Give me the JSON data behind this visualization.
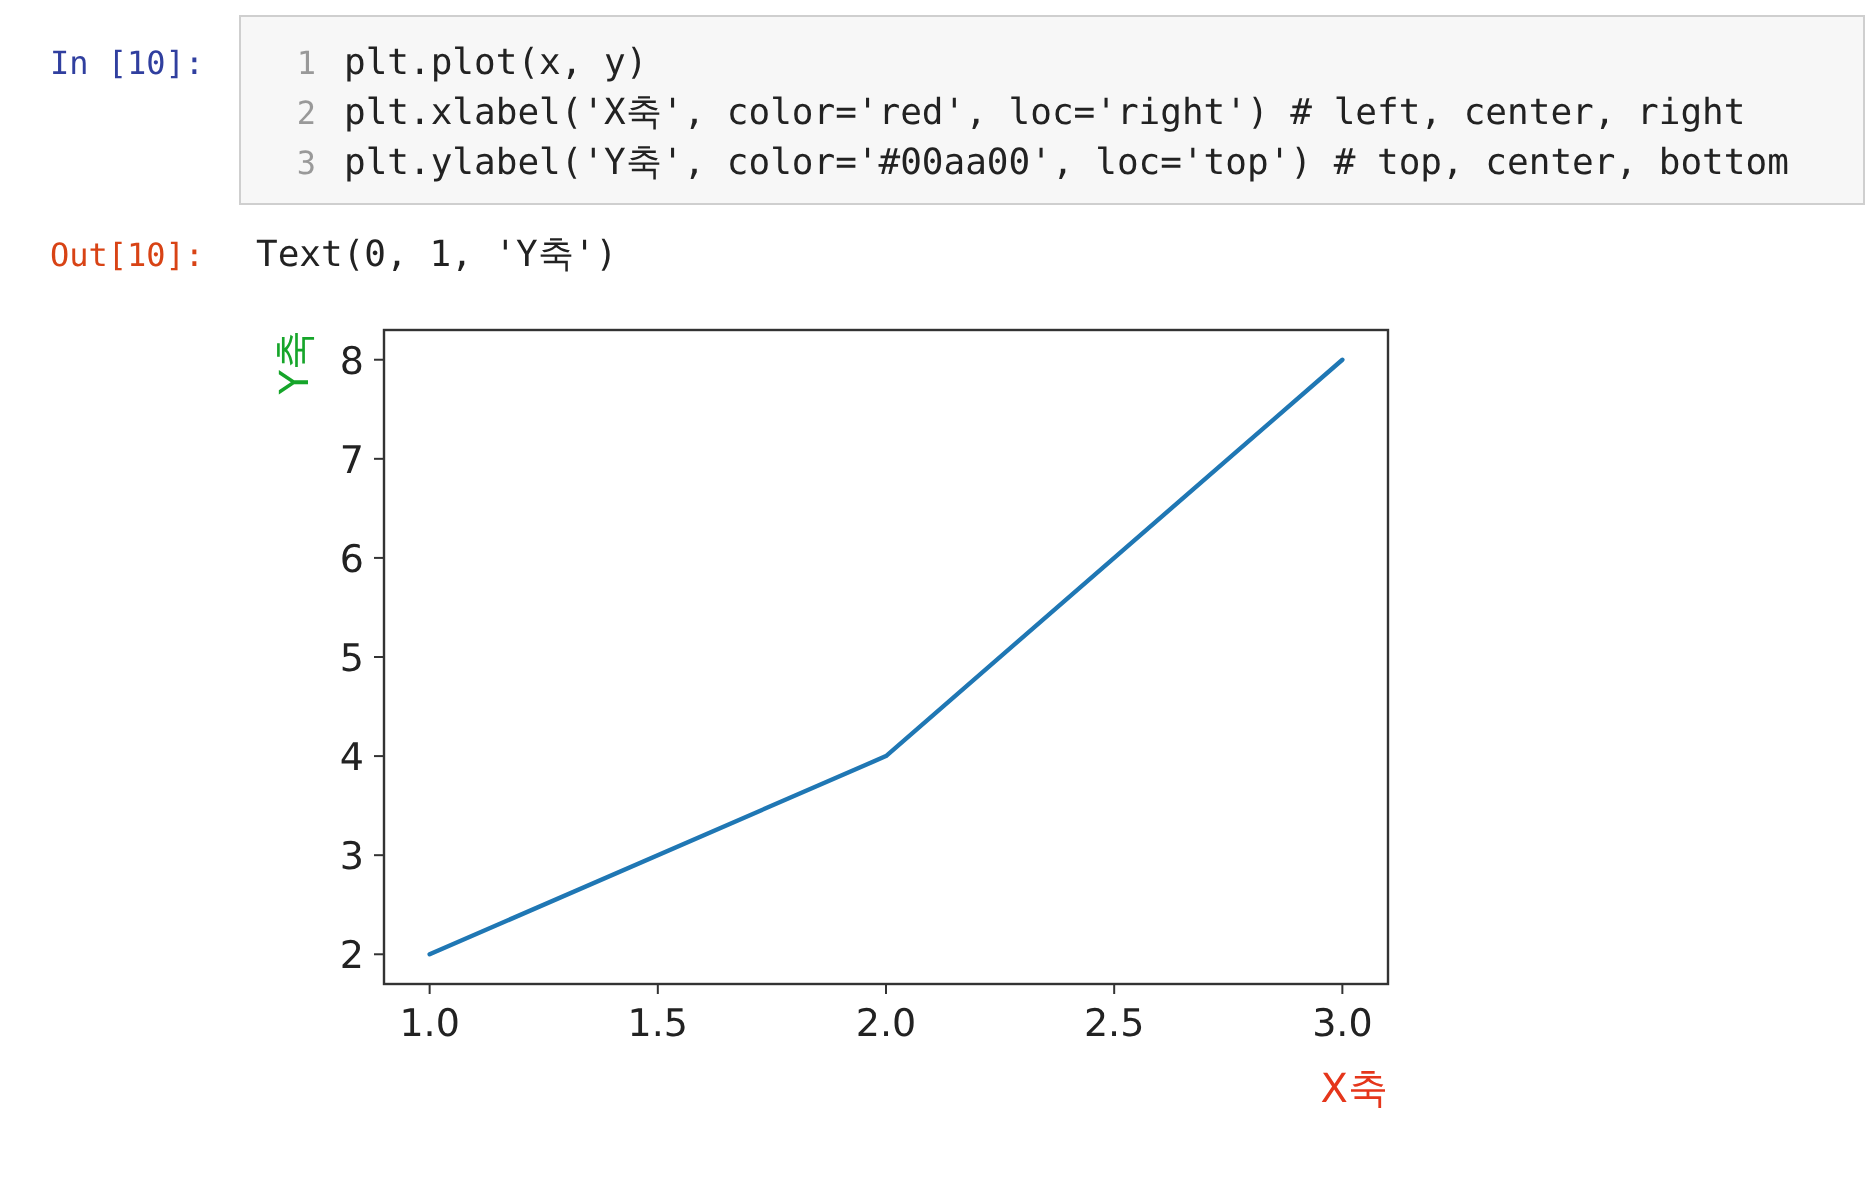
{
  "chart_data": {
    "type": "line",
    "xlabel": "X축",
    "ylabel": "Y축",
    "x": [
      1,
      2,
      3
    ],
    "series": [
      {
        "color": "#1f77b4",
        "values": [
          2,
          4,
          8
        ]
      }
    ],
    "xlim": [
      0.9,
      3.1
    ],
    "ylim": [
      1.7,
      8.3
    ],
    "xticks": [
      {
        "value": 1,
        "label": "1.0"
      },
      {
        "value": 1.5,
        "label": "1.5"
      },
      {
        "value": 2,
        "label": "2.0"
      },
      {
        "value": 2.5,
        "label": "2.5"
      },
      {
        "value": 3,
        "label": "3.0"
      }
    ],
    "yticks": [
      2,
      3,
      4,
      5,
      6,
      7,
      8
    ],
    "grid": false,
    "marker": "none",
    "line_style": "solid",
    "annotations": [
      "In [10]:",
      "1",
      "2",
      "3",
      "plt.plot(x, y)",
      "plt.xlabel('X축', color='red', loc='right') # left, center, right",
      "plt.ylabel('Y축', color='#00aa00', loc='top') # top, center, bottom",
      "Out[10]:",
      "Text(0, 1, 'Y축')"
    ]
  }
}
